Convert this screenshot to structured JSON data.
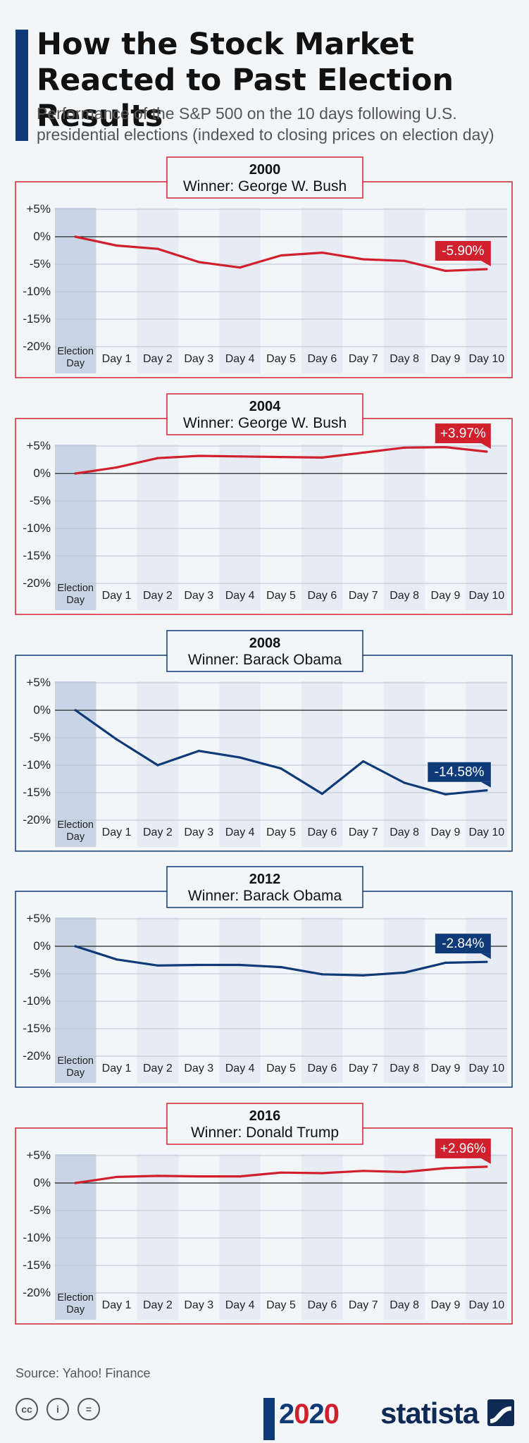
{
  "header": {
    "title": "How the Stock Market Reacted to Past Election Results",
    "subtitle": "Performance of the S&P 500 on the 10 days following U.S. presidential elections (indexed to closing prices on election day)"
  },
  "colors": {
    "republican": "#d1202d",
    "democrat": "#0e3a78",
    "highlight_col": "#c9d5e6",
    "alt_col": "#e6ebf4"
  },
  "chart_data": [
    {
      "type": "line",
      "year": "2000",
      "winner_label": "Winner: George W. Bush",
      "party_color": "#d1202d",
      "categories": [
        "Election Day",
        "Day 1",
        "Day 2",
        "Day 3",
        "Day 4",
        "Day 5",
        "Day 6",
        "Day 7",
        "Day 8",
        "Day 9",
        "Day 10"
      ],
      "values": [
        0,
        -1.6,
        -2.2,
        -4.6,
        -5.6,
        -3.4,
        -2.9,
        -4.1,
        -4.4,
        -6.2,
        -5.9
      ],
      "final_label": "-5.90%",
      "yticks": [
        "+5%",
        "0%",
        "-5%",
        "-10%",
        "-15%",
        "-20%"
      ],
      "ylim": [
        -20,
        5
      ]
    },
    {
      "type": "line",
      "year": "2004",
      "winner_label": "Winner: George W. Bush",
      "party_color": "#d1202d",
      "categories": [
        "Election Day",
        "Day 1",
        "Day 2",
        "Day 3",
        "Day 4",
        "Day 5",
        "Day 6",
        "Day 7",
        "Day 8",
        "Day 9",
        "Day 10"
      ],
      "values": [
        0,
        1.1,
        2.8,
        3.2,
        3.1,
        3.0,
        2.9,
        3.8,
        4.7,
        4.8,
        3.97
      ],
      "final_label": "+3.97%",
      "yticks": [
        "+5%",
        "0%",
        "-5%",
        "-10%",
        "-15%",
        "-20%"
      ],
      "ylim": [
        -20,
        5
      ]
    },
    {
      "type": "line",
      "year": "2008",
      "winner_label": "Winner: Barack Obama",
      "party_color": "#0e3a78",
      "categories": [
        "Election Day",
        "Day 1",
        "Day 2",
        "Day 3",
        "Day 4",
        "Day 5",
        "Day 6",
        "Day 7",
        "Day 8",
        "Day 9",
        "Day 10"
      ],
      "values": [
        0,
        -5.3,
        -10.0,
        -7.4,
        -8.6,
        -10.6,
        -15.2,
        -9.3,
        -13.2,
        -15.3,
        -14.58
      ],
      "final_label": "-14.58%",
      "yticks": [
        "+5%",
        "0%",
        "-5%",
        "-10%",
        "-15%",
        "-20%"
      ],
      "ylim": [
        -20,
        5
      ]
    },
    {
      "type": "line",
      "year": "2012",
      "winner_label": "Winner: Barack Obama",
      "party_color": "#0e3a78",
      "categories": [
        "Election Day",
        "Day 1",
        "Day 2",
        "Day 3",
        "Day 4",
        "Day 5",
        "Day 6",
        "Day 7",
        "Day 8",
        "Day 9",
        "Day 10"
      ],
      "values": [
        0,
        -2.4,
        -3.5,
        -3.4,
        -3.4,
        -3.8,
        -5.1,
        -5.3,
        -4.8,
        -3.0,
        -2.84
      ],
      "final_label": "-2.84%",
      "yticks": [
        "+5%",
        "0%",
        "-5%",
        "-10%",
        "-15%",
        "-20%"
      ],
      "ylim": [
        -20,
        5
      ]
    },
    {
      "type": "line",
      "year": "2016",
      "winner_label": "Winner: Donald Trump",
      "party_color": "#d1202d",
      "categories": [
        "Election Day",
        "Day 1",
        "Day 2",
        "Day 3",
        "Day 4",
        "Day 5",
        "Day 6",
        "Day 7",
        "Day 8",
        "Day 9",
        "Day 10"
      ],
      "values": [
        0,
        1.1,
        1.3,
        1.2,
        1.2,
        1.9,
        1.8,
        2.2,
        2.0,
        2.7,
        2.96
      ],
      "final_label": "+2.96%",
      "yticks": [
        "+5%",
        "0%",
        "-5%",
        "-10%",
        "-15%",
        "-20%"
      ],
      "ylim": [
        -20,
        5
      ]
    }
  ],
  "footer": {
    "source": "Source: Yahoo! Finance",
    "cc_icons": [
      "cc",
      "i",
      "="
    ],
    "election_logo": {
      "prefix": "2",
      "o": "0",
      "mid": "2",
      "o2": "0"
    },
    "brand": "statista"
  }
}
